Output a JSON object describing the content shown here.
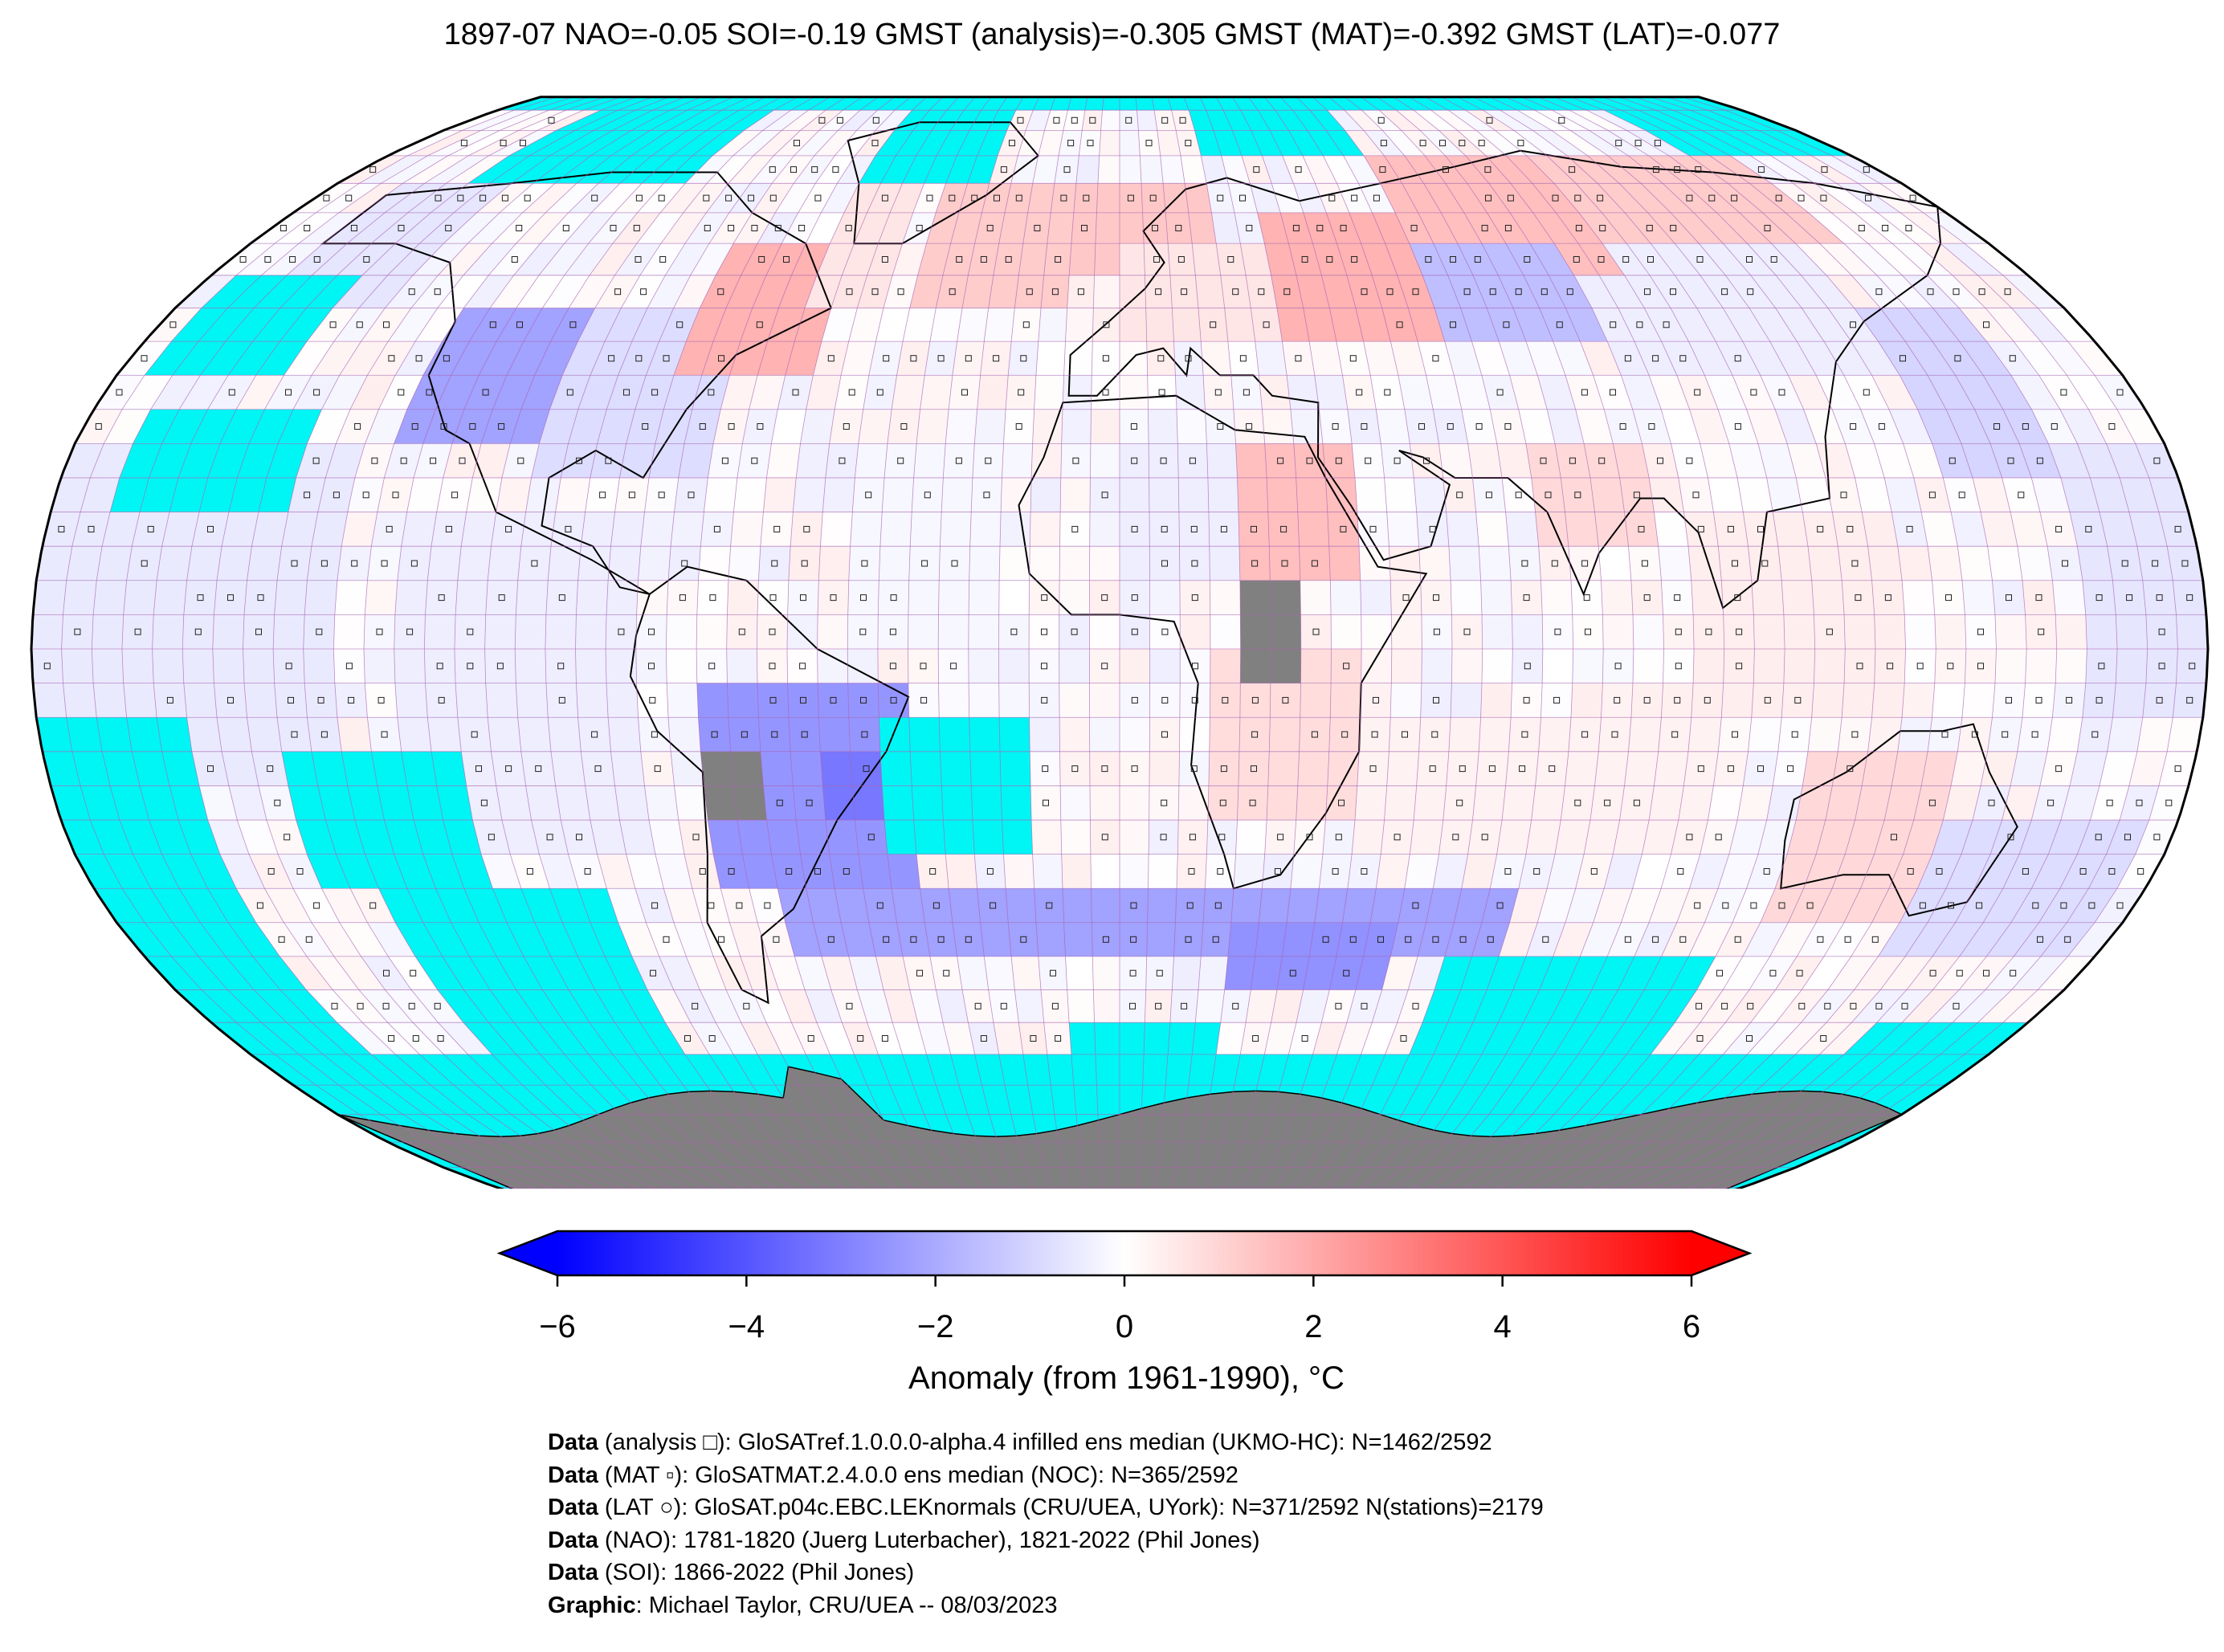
{
  "title": "1897-07 NAO=-0.05 SOI=-0.19 GMST (analysis)=-0.305 GMST (MAT)=-0.392 GMST (LAT)=-0.077",
  "map": {
    "projection": "Robinson",
    "ocean_fill_color": "#00f5f5",
    "land_nodata_color": "#808080",
    "grid_line_color": "#b060b0",
    "grid_resolution_deg": 5
  },
  "colorbar": {
    "label": "Anomaly (from 1961-1990), °C",
    "ticks": [
      "−6",
      "−4",
      "−2",
      "0",
      "2",
      "4",
      "6"
    ],
    "tick_values": [
      -6,
      -4,
      -2,
      0,
      2,
      4,
      6
    ],
    "range": [
      -6,
      6
    ],
    "colormap_stops": [
      "#0000ff",
      "#ffffff",
      "#ff0000"
    ],
    "extend": "both"
  },
  "credits": [
    {
      "bold": "Data",
      "text": " (analysis □): GloSATref.1.0.0.0-alpha.4 infilled ens median (UKMO-HC): N=1462/2592"
    },
    {
      "bold": "Data",
      "text": " (MAT ▫): GloSATMAT.2.4.0.0 ens median (NOC): N=365/2592"
    },
    {
      "bold": "Data",
      "text": " (LAT ○): GloSAT.p04c.EBC.LEKnormals (CRU/UEA, UYork): N=371/2592 N(stations)=2179"
    },
    {
      "bold": "Data",
      "text": " (NAO): 1781-1820 (Juerg Luterbacher), 1821-2022 (Phil Jones)"
    },
    {
      "bold": "Data",
      "text": " (SOI): 1866-2022 (Phil Jones)"
    },
    {
      "bold": "Graphic",
      "text": ": Michael Taylor, CRU/UEA -- 08/03/2023"
    }
  ]
}
